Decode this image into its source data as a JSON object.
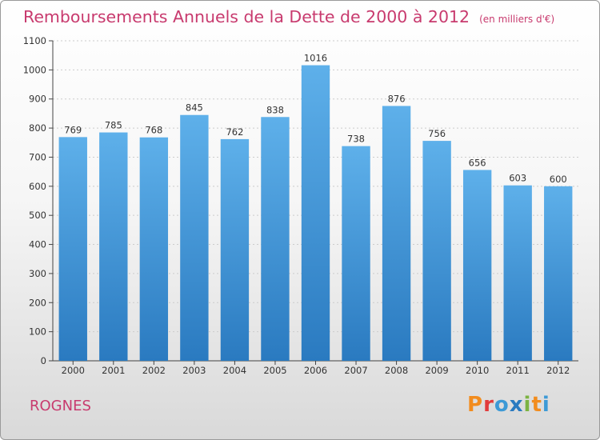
{
  "header": {
    "title": "Remboursements Annuels de la Dette de 2000 à 2012",
    "unit": "(en milliers d'€)"
  },
  "footer": {
    "place": "ROGNES",
    "logo": "Proxiti"
  },
  "colors": {
    "title": "#c83a6e",
    "bar_light": "#5eb0ea",
    "bar_dark": "#2a7ac0",
    "grid": "#cccccc",
    "logo": [
      "#f28c1e",
      "#e23c3c",
      "#3d9ad6",
      "#2a7ac0",
      "#7cb342",
      "#f28c1e",
      "#3d9ad6"
    ]
  },
  "chart_data": {
    "type": "bar",
    "title": "Remboursements Annuels de la Dette de 2000 à 2012",
    "subtitle": "(en milliers d'€)",
    "xlabel": "",
    "ylabel": "",
    "categories": [
      "2000",
      "2001",
      "2002",
      "2003",
      "2004",
      "2005",
      "2006",
      "2007",
      "2008",
      "2009",
      "2010",
      "2011",
      "2012"
    ],
    "values": [
      769,
      785,
      768,
      845,
      762,
      838,
      1016,
      738,
      876,
      756,
      656,
      603,
      600
    ],
    "ylim": [
      0,
      1100
    ],
    "yticks": [
      0,
      100,
      200,
      300,
      400,
      500,
      600,
      700,
      800,
      900,
      1000,
      1100
    ],
    "grid": true,
    "legend": "none",
    "data_labels": true
  }
}
